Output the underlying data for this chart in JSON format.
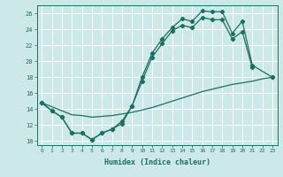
{
  "xlabel": "Humidex (Indice chaleur)",
  "bg_color": "#cce8e8",
  "grid_color": "#ffffff",
  "line_color": "#1a7060",
  "xlim": [
    -0.5,
    23.5
  ],
  "ylim": [
    9.5,
    27.0
  ],
  "yticks": [
    10,
    12,
    14,
    16,
    18,
    20,
    22,
    24,
    26
  ],
  "xticks": [
    0,
    1,
    2,
    3,
    4,
    5,
    6,
    7,
    8,
    9,
    10,
    11,
    12,
    13,
    14,
    15,
    16,
    17,
    18,
    19,
    20,
    21,
    22,
    23
  ],
  "line_A_x": [
    0,
    1,
    2,
    3,
    4,
    5,
    6,
    7,
    8,
    9,
    10,
    11,
    12,
    13,
    14,
    15,
    16,
    17,
    18,
    19,
    20,
    21,
    23
  ],
  "line_A_y": [
    14.8,
    13.8,
    13.0,
    11.0,
    11.0,
    10.2,
    11.0,
    11.5,
    12.2,
    14.4,
    18.0,
    21.0,
    22.8,
    24.2,
    25.3,
    25.0,
    26.3,
    26.2,
    26.2,
    23.5,
    25.0,
    19.5,
    18.0
  ],
  "line_B_x": [
    0,
    1,
    2,
    3,
    4,
    5,
    6,
    7,
    8,
    9,
    10,
    11,
    12,
    13,
    14,
    15,
    16,
    17,
    18,
    19,
    20,
    21,
    22,
    23
  ],
  "line_B_y": [
    14.8,
    13.8,
    13.0,
    11.0,
    11.0,
    10.2,
    11.0,
    11.5,
    12.5,
    14.4,
    17.5,
    20.5,
    22.2,
    23.8,
    24.5,
    24.2,
    25.5,
    25.2,
    25.2,
    22.8,
    23.7,
    19.2,
    null,
    18.0
  ],
  "line_C_x": [
    0,
    1,
    2,
    3,
    4,
    5,
    6,
    7,
    8,
    9,
    10,
    11,
    12,
    13,
    14,
    15,
    16,
    17,
    18,
    19,
    20,
    21,
    22,
    23
  ],
  "line_C_y": [
    14.8,
    14.3,
    13.8,
    13.3,
    13.2,
    13.0,
    13.1,
    13.2,
    13.4,
    13.6,
    13.9,
    14.2,
    14.6,
    15.0,
    15.4,
    15.8,
    16.2,
    16.5,
    16.8,
    17.1,
    17.3,
    17.5,
    17.8,
    18.0
  ]
}
